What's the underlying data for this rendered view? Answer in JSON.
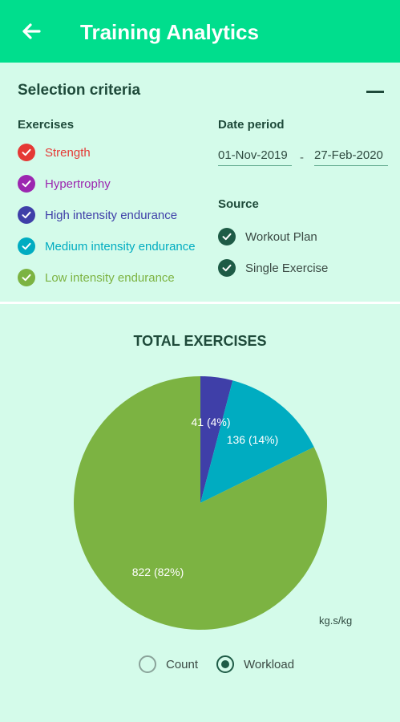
{
  "appbar": {
    "title": "Training Analytics",
    "back_icon": "arrow-left-icon",
    "color": "#00de8d"
  },
  "selection": {
    "title": "Selection criteria",
    "exercises_header": "Exercises",
    "exercises": [
      {
        "label": "Strength",
        "color": "#e53935",
        "checked": true
      },
      {
        "label": "Hypertrophy",
        "color": "#9c27b0",
        "checked": true
      },
      {
        "label": "High intensity endurance",
        "color": "#3f3fa8",
        "checked": true
      },
      {
        "label": "Medium intensity endurance",
        "color": "#00acc1",
        "checked": true
      },
      {
        "label": "Low intensity endurance",
        "color": "#7cb342",
        "checked": true
      }
    ],
    "date_header": "Date period",
    "date_from": "01-Nov-2019",
    "date_separator": "-",
    "date_to": "27-Feb-2020",
    "source_header": "Source",
    "sources": [
      {
        "label": "Workout Plan",
        "checked": true,
        "color": "#1e5b46"
      },
      {
        "label": "Single Exercise",
        "checked": true,
        "color": "#1e5b46"
      }
    ]
  },
  "chart_data": {
    "type": "pie",
    "title": "TOTAL EXERCISES",
    "categories": [
      "High intensity endurance",
      "Medium intensity endurance",
      "Low intensity endurance"
    ],
    "values": [
      41,
      136,
      822
    ],
    "labels": [
      "41 (4%)",
      "136 (14%)",
      "822 (82%)"
    ],
    "colors": [
      "#3f3fa8",
      "#00acc1",
      "#7cb342"
    ],
    "unit": "kg.s/kg"
  },
  "mode": {
    "options": [
      {
        "label": "Count",
        "selected": false
      },
      {
        "label": "Workload",
        "selected": true
      }
    ]
  }
}
